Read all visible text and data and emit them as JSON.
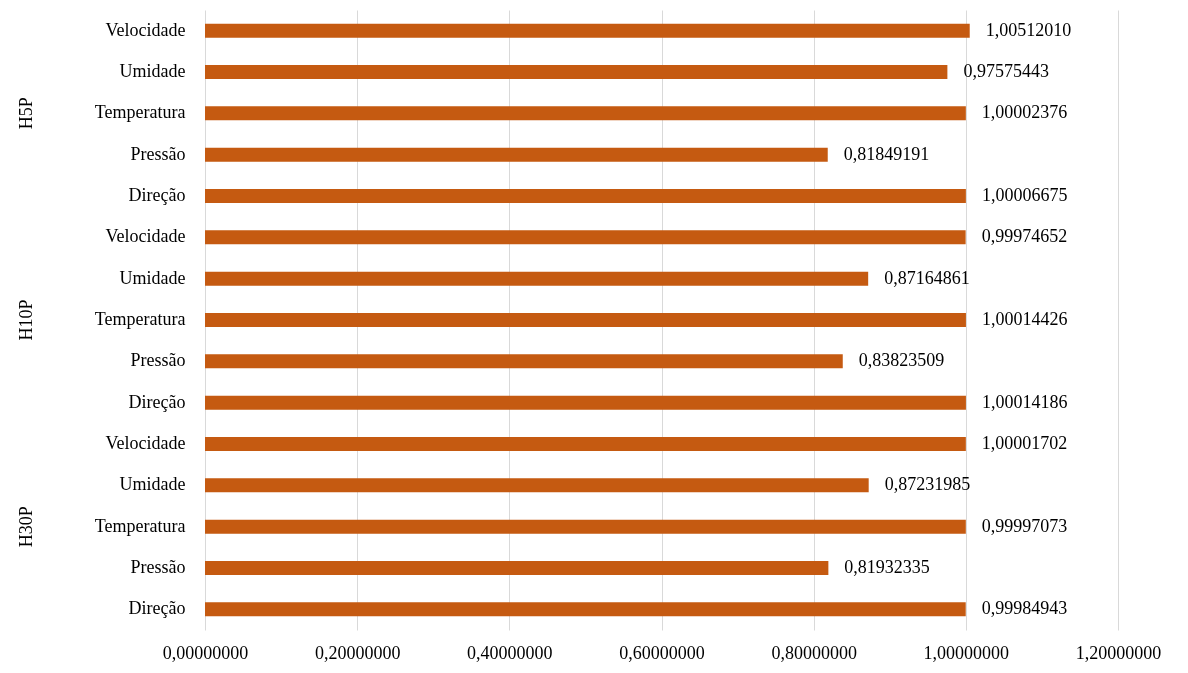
{
  "chart_data": {
    "type": "bar",
    "orientation": "horizontal",
    "categories": [
      "Velocidade",
      "Umidade",
      "Temperatura",
      "Pressão",
      "Direção",
      "Velocidade",
      "Umidade",
      "Temperatura",
      "Pressão",
      "Direção",
      "Velocidade",
      "Umidade",
      "Temperatura",
      "Pressão",
      "Direção"
    ],
    "values": [
      1.0051201,
      0.97575443,
      1.00002376,
      0.81849191,
      1.00006675,
      0.99974652,
      0.87164861,
      1.00014426,
      0.83823509,
      1.00014186,
      1.00001702,
      0.87231985,
      0.99997073,
      0.81932335,
      0.99984943
    ],
    "value_labels": [
      "1,00512010",
      "0,97575443",
      "1,00002376",
      "0,81849191",
      "1,00006675",
      "0,99974652",
      "0,87164861",
      "1,00014426",
      "0,83823509",
      "1,00014186",
      "1,00001702",
      "0,87231985",
      "0,99997073",
      "0,81932335",
      "0,99984943"
    ],
    "color": "#c55a11",
    "annotations": [
      "H5P",
      "H10P",
      "H30P"
    ],
    "xlim": [
      0,
      1.2
    ],
    "xticks": [
      {
        "value": 0,
        "label": "0,00000000"
      },
      {
        "value": 0.2,
        "label": "0,20000000"
      },
      {
        "value": 0.4,
        "label": "0,40000000"
      },
      {
        "value": 0.6,
        "label": "0,60000000"
      },
      {
        "value": 0.8,
        "label": "0,80000000"
      },
      {
        "value": 1,
        "label": "1,00000000"
      },
      {
        "value": 1.2,
        "label": "1,20000000"
      }
    ],
    "grid": "x"
  }
}
